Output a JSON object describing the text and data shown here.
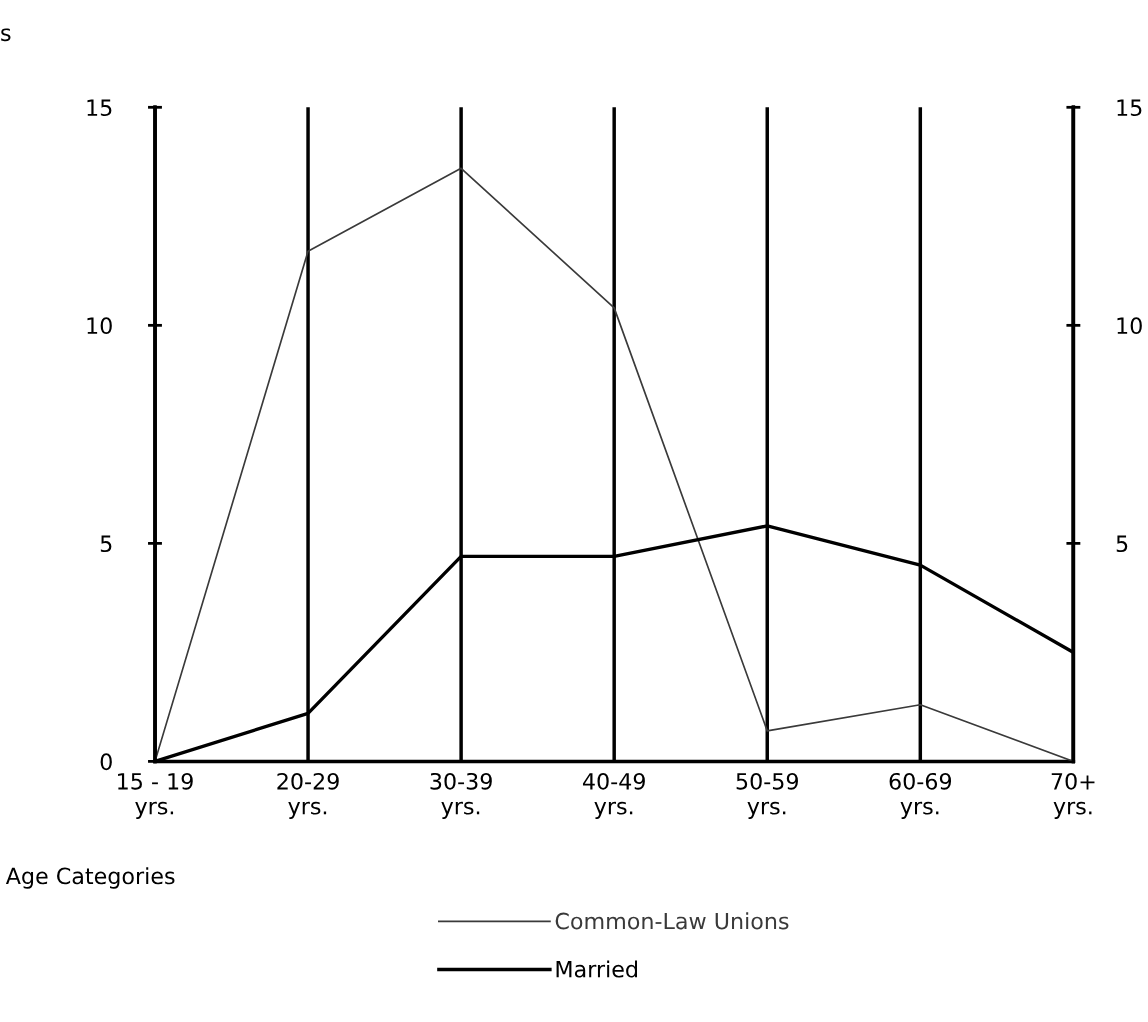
{
  "chart_data": {
    "type": "line",
    "ylabel": "s",
    "xlabel": "Age Categories",
    "categories": [
      "15 - 19\nyrs.",
      "20-29\nyrs.",
      "30-39\nyrs.",
      "40-49\nyrs.",
      "50-59\nyrs.",
      "60-69\nyrs.",
      "70+\nyrs."
    ],
    "series": [
      {
        "name": "Common-Law Unions",
        "color": "#3a3a3a",
        "values": [
          0,
          11.7,
          13.6,
          10.4,
          0.7,
          1.3,
          0
        ]
      },
      {
        "name": "Married",
        "color": "#000000",
        "values": [
          0,
          1.1,
          4.7,
          4.7,
          5.4,
          4.5,
          2.5
        ]
      }
    ],
    "ylim": [
      0,
      15
    ],
    "yticks": [
      0,
      5,
      10,
      15
    ],
    "y2lim": [
      0,
      15
    ],
    "y2ticks": [
      5,
      10,
      15
    ],
    "grid": "x",
    "legend": "bottom",
    "marker": "none",
    "line_style": "solid"
  }
}
